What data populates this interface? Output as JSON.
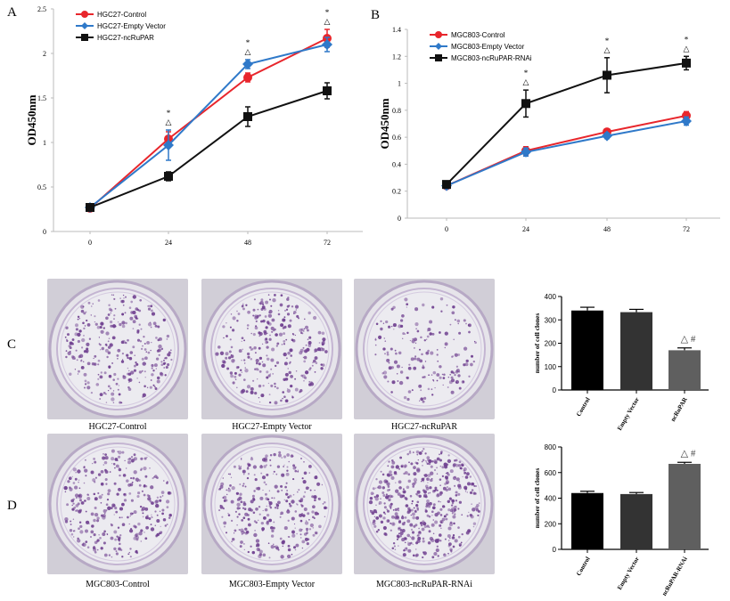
{
  "panels": {
    "a": "A",
    "b": "B",
    "c": "C",
    "d": "D"
  },
  "chart_data": [
    {
      "id": "A",
      "type": "line",
      "ylabel": "OD450nm",
      "xlabel": "",
      "x": [
        "0",
        "24",
        "48",
        "72"
      ],
      "ylim": [
        0,
        2.5
      ],
      "yticks": [
        "0",
        "0.5",
        "1",
        "1.5",
        "2",
        "2.5"
      ],
      "series": [
        {
          "name": "HGC27-Control",
          "color": "#e8262c",
          "marker": "circle",
          "values": [
            0.26,
            1.04,
            1.73,
            2.17
          ],
          "errors": [
            0.03,
            0.08,
            0.05,
            0.1
          ]
        },
        {
          "name": "HGC27-Empty Vector",
          "color": "#2f79c9",
          "marker": "diamond",
          "values": [
            0.27,
            0.97,
            1.88,
            2.1
          ],
          "errors": [
            0.03,
            0.17,
            0.05,
            0.08
          ]
        },
        {
          "name": "HGC27-ncRuPAR",
          "color": "#111111",
          "marker": "square",
          "values": [
            0.27,
            0.62,
            1.29,
            1.58
          ],
          "errors": [
            0.03,
            0.05,
            0.11,
            0.09
          ]
        }
      ],
      "annotations": [
        {
          "x": "24",
          "star": "*",
          "triangle": "△"
        },
        {
          "x": "48",
          "star": "*",
          "triangle": "△"
        },
        {
          "x": "72",
          "star": "*",
          "triangle": "△"
        }
      ],
      "legend": "top-left"
    },
    {
      "id": "B",
      "type": "line",
      "ylabel": "OD450nm",
      "xlabel": "",
      "x": [
        "0",
        "24",
        "48",
        "72"
      ],
      "ylim": [
        0,
        1.4
      ],
      "yticks": [
        "0",
        "0.2",
        "0.4",
        "0.6",
        "0.8",
        "1",
        "1.2",
        "1.4"
      ],
      "series": [
        {
          "name": "MGC803-Control",
          "color": "#e8262c",
          "marker": "circle",
          "values": [
            0.24,
            0.5,
            0.64,
            0.76
          ],
          "errors": [
            0.02,
            0.03,
            0.02,
            0.03
          ]
        },
        {
          "name": "MGC803-Empty Vector",
          "color": "#2f79c9",
          "marker": "diamond",
          "values": [
            0.24,
            0.49,
            0.61,
            0.72
          ],
          "errors": [
            0.02,
            0.03,
            0.02,
            0.03
          ]
        },
        {
          "name": "MGC803-ncRuPAR-RNAi",
          "color": "#111111",
          "marker": "square",
          "values": [
            0.25,
            0.85,
            1.06,
            1.15
          ],
          "errors": [
            0.02,
            0.1,
            0.13,
            0.05
          ]
        }
      ],
      "annotations": [
        {
          "x": "24",
          "star": "*",
          "triangle": "△"
        },
        {
          "x": "48",
          "star": "*",
          "triangle": "△"
        },
        {
          "x": "72",
          "star": "*",
          "triangle": "△"
        }
      ],
      "legend": "top-left"
    },
    {
      "id": "C",
      "type": "bar",
      "ylabel": "number of cell clones",
      "xlabel": "",
      "categories": [
        "Control",
        "Empty Vector",
        "ncRuPAR"
      ],
      "values": [
        340,
        333,
        170
      ],
      "errors": [
        14,
        12,
        10
      ],
      "colors": [
        "#000000",
        "#333333",
        "#5f5f5f"
      ],
      "ylim": [
        0,
        400
      ],
      "yticks": [
        "0",
        "100",
        "200",
        "300",
        "400"
      ],
      "bar_annotation": "△ #"
    },
    {
      "id": "D",
      "type": "bar",
      "ylabel": "number of cell clones",
      "xlabel": "",
      "categories": [
        "Control",
        "Empty Vector",
        "ncRuPAR-RNAi"
      ],
      "values": [
        440,
        432,
        668
      ],
      "errors": [
        14,
        12,
        12
      ],
      "colors": [
        "#000000",
        "#333333",
        "#5f5f5f"
      ],
      "ylim": [
        0,
        800
      ],
      "yticks": [
        "0",
        "200",
        "400",
        "600",
        "800"
      ],
      "bar_annotation": "△ #"
    }
  ],
  "dish_labels": {
    "row_c": [
      "HGC27-Control",
      "HGC27-Empty Vector",
      "HGC27-ncRuPAR"
    ],
    "row_d": [
      "MGC803-Control",
      "MGC803-Empty Vector",
      "MGC803-ncRuPAR-RNAi"
    ]
  },
  "colors": {
    "dish_stain": "#6f3f8f",
    "dish_bg": "#ecebf0"
  }
}
